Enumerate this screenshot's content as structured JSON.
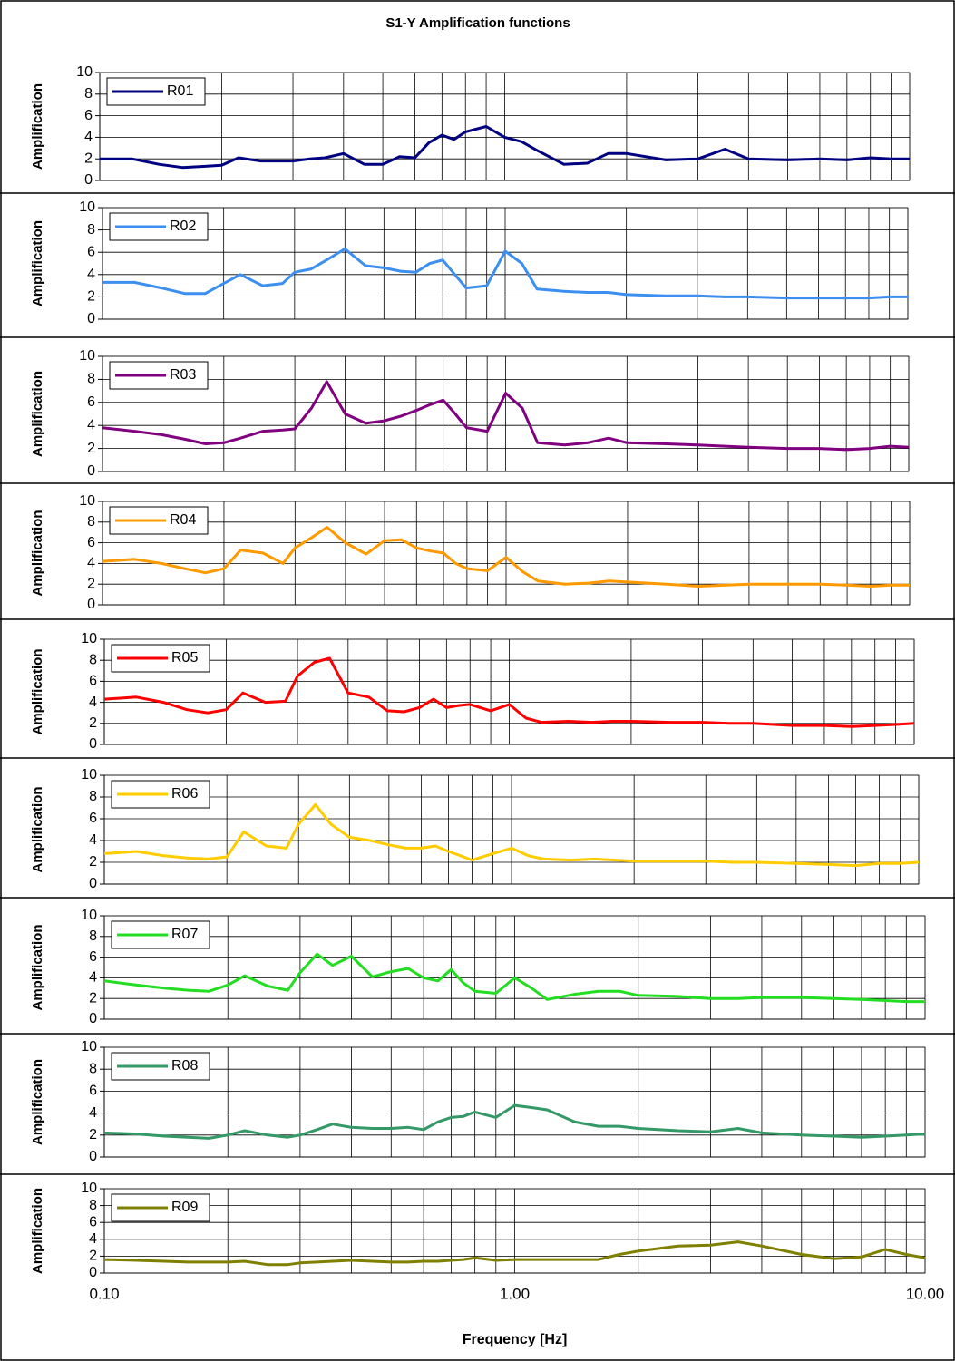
{
  "chart_data": [
    {
      "type": "line",
      "title": "S1-Y Amplification functions",
      "ylabel": "Amplification",
      "x": [
        0.1,
        0.12,
        0.14,
        0.16,
        0.18,
        0.2,
        0.22,
        0.25,
        0.28,
        0.3,
        0.33,
        0.36,
        0.4,
        0.45,
        0.5,
        0.55,
        0.6,
        0.65,
        0.7,
        0.75,
        0.8,
        0.9,
        1.0,
        1.1,
        1.2,
        1.4,
        1.6,
        1.8,
        2,
        2.5,
        3,
        3.5,
        4,
        5,
        6,
        7,
        8,
        9,
        10
      ],
      "series": [
        {
          "name": "R01",
          "color": "#000080",
          "values": [
            2,
            2,
            1.5,
            1.2,
            1.3,
            1.4,
            2.1,
            1.8,
            1.8,
            1.8,
            2,
            2.1,
            2.5,
            1.5,
            1.5,
            2.2,
            2.1,
            3.5,
            4.2,
            3.8,
            4.5,
            5,
            4,
            3.6,
            2.8,
            1.5,
            1.6,
            2.5,
            2.5,
            1.9,
            2,
            2.9,
            2,
            1.9,
            2,
            1.9,
            2.1,
            2,
            2
          ]
        }
      ],
      "xlim": [
        0.1,
        10
      ],
      "ylim": [
        0,
        10
      ],
      "yticks": [
        0,
        2,
        4,
        6,
        8,
        10
      ],
      "xticks": [
        0.1,
        1,
        10
      ],
      "x_log": true,
      "grid": true,
      "legend": "upper left"
    },
    {
      "type": "line",
      "ylabel": "Amplification",
      "x": [
        0.1,
        0.12,
        0.14,
        0.16,
        0.18,
        0.2,
        0.22,
        0.25,
        0.28,
        0.3,
        0.33,
        0.36,
        0.4,
        0.45,
        0.5,
        0.55,
        0.6,
        0.65,
        0.7,
        0.75,
        0.8,
        0.9,
        1.0,
        1.1,
        1.2,
        1.4,
        1.6,
        1.8,
        2,
        2.5,
        3,
        3.5,
        4,
        5,
        6,
        7,
        8,
        9,
        10
      ],
      "series": [
        {
          "name": "R02",
          "color": "#3d8fef",
          "values": [
            3.3,
            3.3,
            2.8,
            2.3,
            2.3,
            3.2,
            4.0,
            3.0,
            3.2,
            4.2,
            4.5,
            5.3,
            6.3,
            4.8,
            4.6,
            4.3,
            4.2,
            5.0,
            5.3,
            4.0,
            2.8,
            3.0,
            6.1,
            5.0,
            2.7,
            2.5,
            2.4,
            2.4,
            2.2,
            2.1,
            2.1,
            2.0,
            2.0,
            1.9,
            1.9,
            1.9,
            1.9,
            2.0,
            2.0
          ]
        }
      ],
      "xlim": [
        0.1,
        10
      ],
      "ylim": [
        0,
        10
      ],
      "yticks": [
        0,
        2,
        4,
        6,
        8,
        10
      ],
      "xticks": [
        0.1,
        1,
        10
      ],
      "x_log": true,
      "grid": true,
      "legend": "upper left"
    },
    {
      "type": "line",
      "ylabel": "Amplification",
      "x": [
        0.1,
        0.12,
        0.14,
        0.16,
        0.18,
        0.2,
        0.22,
        0.25,
        0.28,
        0.3,
        0.33,
        0.36,
        0.4,
        0.45,
        0.5,
        0.55,
        0.6,
        0.65,
        0.7,
        0.75,
        0.8,
        0.9,
        1.0,
        1.1,
        1.2,
        1.4,
        1.6,
        1.8,
        2,
        2.5,
        3,
        3.5,
        4,
        5,
        6,
        7,
        8,
        9,
        10
      ],
      "series": [
        {
          "name": "R03",
          "color": "#800080",
          "values": [
            3.8,
            3.5,
            3.2,
            2.8,
            2.4,
            2.5,
            2.9,
            3.5,
            3.6,
            3.7,
            5.5,
            7.8,
            5.0,
            4.2,
            4.4,
            4.8,
            5.3,
            5.8,
            6.2,
            5.0,
            3.8,
            3.5,
            6.8,
            5.5,
            2.5,
            2.3,
            2.5,
            2.9,
            2.5,
            2.4,
            2.3,
            2.2,
            2.1,
            2.0,
            2.0,
            1.9,
            2.0,
            2.2,
            2.1
          ]
        }
      ],
      "xlim": [
        0.1,
        10
      ],
      "ylim": [
        0,
        10
      ],
      "yticks": [
        0,
        2,
        4,
        6,
        8,
        10
      ],
      "xticks": [
        0.1,
        1,
        10
      ],
      "x_log": true,
      "grid": true,
      "legend": "upper left"
    },
    {
      "type": "line",
      "ylabel": "Amplification",
      "x": [
        0.1,
        0.12,
        0.14,
        0.16,
        0.18,
        0.2,
        0.22,
        0.25,
        0.28,
        0.3,
        0.33,
        0.36,
        0.4,
        0.45,
        0.5,
        0.55,
        0.6,
        0.65,
        0.7,
        0.75,
        0.8,
        0.9,
        1.0,
        1.1,
        1.2,
        1.4,
        1.6,
        1.8,
        2,
        2.5,
        3,
        3.5,
        4,
        5,
        6,
        7,
        8,
        9,
        10
      ],
      "series": [
        {
          "name": "R04",
          "color": "#ff9900",
          "values": [
            4.2,
            4.4,
            4.0,
            3.5,
            3.1,
            3.5,
            5.3,
            5.0,
            4.0,
            5.5,
            6.5,
            7.5,
            6.0,
            4.9,
            6.2,
            6.3,
            5.5,
            5.2,
            5.0,
            4.0,
            3.5,
            3.3,
            4.6,
            3.2,
            2.3,
            2.0,
            2.1,
            2.3,
            2.2,
            2.0,
            1.8,
            1.9,
            2.0,
            2.0,
            2.0,
            1.9,
            1.8,
            1.9,
            1.9
          ]
        }
      ],
      "xlim": [
        0.1,
        10
      ],
      "ylim": [
        0,
        10
      ],
      "yticks": [
        0,
        2,
        4,
        6,
        8,
        10
      ],
      "xticks": [
        0.1,
        1,
        10
      ],
      "x_log": true,
      "grid": true,
      "legend": "upper left"
    },
    {
      "type": "line",
      "ylabel": "Amplification",
      "x": [
        0.1,
        0.12,
        0.14,
        0.16,
        0.18,
        0.2,
        0.22,
        0.25,
        0.28,
        0.3,
        0.33,
        0.36,
        0.4,
        0.45,
        0.5,
        0.55,
        0.6,
        0.65,
        0.7,
        0.75,
        0.8,
        0.9,
        1.0,
        1.1,
        1.2,
        1.4,
        1.6,
        1.8,
        2,
        2.5,
        3,
        3.5,
        4,
        5,
        6,
        7,
        8,
        9,
        10
      ],
      "series": [
        {
          "name": "R05",
          "color": "#ff0000",
          "values": [
            4.3,
            4.5,
            4.0,
            3.3,
            3.0,
            3.3,
            4.9,
            4.0,
            4.1,
            6.5,
            7.8,
            8.2,
            4.9,
            4.5,
            3.2,
            3.1,
            3.5,
            4.3,
            3.5,
            3.7,
            3.8,
            3.2,
            3.8,
            2.5,
            2.1,
            2.2,
            2.1,
            2.2,
            2.2,
            2.1,
            2.1,
            2.0,
            2.0,
            1.8,
            1.8,
            1.7,
            1.8,
            1.9,
            2.0
          ]
        }
      ],
      "xlim": [
        0.1,
        10
      ],
      "ylim": [
        0,
        10
      ],
      "yticks": [
        0,
        2,
        4,
        6,
        8,
        10
      ],
      "xticks": [
        0.1,
        1,
        10
      ],
      "x_log": true,
      "grid": true,
      "legend": "upper left"
    },
    {
      "type": "line",
      "ylabel": "Amplification",
      "x": [
        0.1,
        0.12,
        0.14,
        0.16,
        0.18,
        0.2,
        0.22,
        0.25,
        0.28,
        0.3,
        0.33,
        0.36,
        0.4,
        0.45,
        0.5,
        0.55,
        0.6,
        0.65,
        0.7,
        0.75,
        0.8,
        0.9,
        1.0,
        1.1,
        1.2,
        1.4,
        1.6,
        1.8,
        2,
        2.5,
        3,
        3.5,
        4,
        5,
        6,
        7,
        8,
        9,
        10
      ],
      "series": [
        {
          "name": "R06",
          "color": "#ffcc00",
          "values": [
            2.8,
            3.0,
            2.6,
            2.4,
            2.3,
            2.5,
            4.8,
            3.5,
            3.3,
            5.5,
            7.3,
            5.5,
            4.3,
            4.0,
            3.6,
            3.3,
            3.3,
            3.5,
            3.0,
            2.6,
            2.2,
            2.8,
            3.3,
            2.6,
            2.3,
            2.2,
            2.3,
            2.2,
            2.1,
            2.1,
            2.1,
            2.0,
            2.0,
            1.9,
            1.8,
            1.7,
            1.9,
            1.9,
            2.0
          ]
        }
      ],
      "xlim": [
        0.1,
        10
      ],
      "ylim": [
        0,
        10
      ],
      "yticks": [
        0,
        2,
        4,
        6,
        8,
        10
      ],
      "xticks": [
        0.1,
        1,
        10
      ],
      "x_log": true,
      "grid": true,
      "legend": "upper left"
    },
    {
      "type": "line",
      "ylabel": "Amplification",
      "x": [
        0.1,
        0.12,
        0.14,
        0.16,
        0.18,
        0.2,
        0.22,
        0.25,
        0.28,
        0.3,
        0.33,
        0.36,
        0.4,
        0.45,
        0.5,
        0.55,
        0.6,
        0.65,
        0.7,
        0.75,
        0.8,
        0.9,
        1.0,
        1.1,
        1.2,
        1.4,
        1.6,
        1.8,
        2,
        2.5,
        3,
        3.5,
        4,
        5,
        6,
        7,
        8,
        9,
        10
      ],
      "series": [
        {
          "name": "R07",
          "color": "#22dd22",
          "values": [
            3.7,
            3.3,
            3.0,
            2.8,
            2.7,
            3.3,
            4.2,
            3.2,
            2.8,
            4.5,
            6.3,
            5.2,
            6.1,
            4.1,
            4.6,
            4.9,
            4.0,
            3.7,
            4.8,
            3.5,
            2.7,
            2.5,
            4.0,
            3.0,
            1.9,
            2.4,
            2.7,
            2.7,
            2.3,
            2.2,
            2.0,
            2.0,
            2.1,
            2.1,
            2.0,
            1.9,
            1.8,
            1.7,
            1.7
          ]
        }
      ],
      "xlim": [
        0.1,
        10
      ],
      "ylim": [
        0,
        10
      ],
      "yticks": [
        0,
        2,
        4,
        6,
        8,
        10
      ],
      "xticks": [
        0.1,
        1,
        10
      ],
      "x_log": true,
      "grid": true,
      "legend": "upper left"
    },
    {
      "type": "line",
      "ylabel": "Amplification",
      "x": [
        0.1,
        0.12,
        0.14,
        0.16,
        0.18,
        0.2,
        0.22,
        0.25,
        0.28,
        0.3,
        0.33,
        0.36,
        0.4,
        0.45,
        0.5,
        0.55,
        0.6,
        0.65,
        0.7,
        0.75,
        0.8,
        0.9,
        1.0,
        1.1,
        1.2,
        1.4,
        1.6,
        1.8,
        2,
        2.5,
        3,
        3.5,
        4,
        5,
        6,
        7,
        8,
        9,
        10
      ],
      "series": [
        {
          "name": "R08",
          "color": "#339966",
          "values": [
            2.2,
            2.1,
            1.9,
            1.8,
            1.7,
            2.0,
            2.4,
            2.0,
            1.8,
            2.0,
            2.5,
            3.0,
            2.7,
            2.6,
            2.6,
            2.7,
            2.5,
            3.2,
            3.6,
            3.7,
            4.1,
            3.6,
            4.7,
            4.5,
            4.3,
            3.2,
            2.8,
            2.8,
            2.6,
            2.4,
            2.3,
            2.6,
            2.2,
            2.0,
            1.9,
            1.8,
            1.9,
            2.0,
            2.1
          ]
        }
      ],
      "xlim": [
        0.1,
        10
      ],
      "ylim": [
        0,
        10
      ],
      "yticks": [
        0,
        2,
        4,
        6,
        8,
        10
      ],
      "xticks": [
        0.1,
        1,
        10
      ],
      "x_log": true,
      "grid": true,
      "legend": "upper left"
    },
    {
      "type": "line",
      "ylabel": "Amplification",
      "xlabel": "Frequency [Hz]",
      "x": [
        0.1,
        0.12,
        0.14,
        0.16,
        0.18,
        0.2,
        0.22,
        0.25,
        0.28,
        0.3,
        0.33,
        0.36,
        0.4,
        0.45,
        0.5,
        0.55,
        0.6,
        0.65,
        0.7,
        0.75,
        0.8,
        0.9,
        1.0,
        1.1,
        1.2,
        1.4,
        1.6,
        1.8,
        2,
        2.5,
        3,
        3.5,
        4,
        5,
        6,
        7,
        8,
        9,
        10
      ],
      "series": [
        {
          "name": "R09",
          "color": "#808000",
          "values": [
            1.6,
            1.5,
            1.4,
            1.3,
            1.3,
            1.3,
            1.4,
            1.0,
            1.0,
            1.2,
            1.3,
            1.4,
            1.5,
            1.4,
            1.3,
            1.3,
            1.4,
            1.4,
            1.5,
            1.6,
            1.8,
            1.5,
            1.6,
            1.6,
            1.6,
            1.6,
            1.6,
            2.2,
            2.6,
            3.2,
            3.3,
            3.7,
            3.2,
            2.2,
            1.7,
            1.9,
            2.8,
            2.2,
            1.8
          ]
        }
      ],
      "xlim": [
        0.1,
        10
      ],
      "ylim": [
        0,
        10
      ],
      "yticks": [
        0,
        2,
        4,
        6,
        8,
        10
      ],
      "xticks": [
        {
          "value": 0.1,
          "label": "0.10"
        },
        {
          "value": 1,
          "label": "1.00"
        },
        {
          "value": 10,
          "label": "10.00"
        }
      ],
      "x_log": true,
      "grid": true,
      "legend": "upper left"
    }
  ]
}
